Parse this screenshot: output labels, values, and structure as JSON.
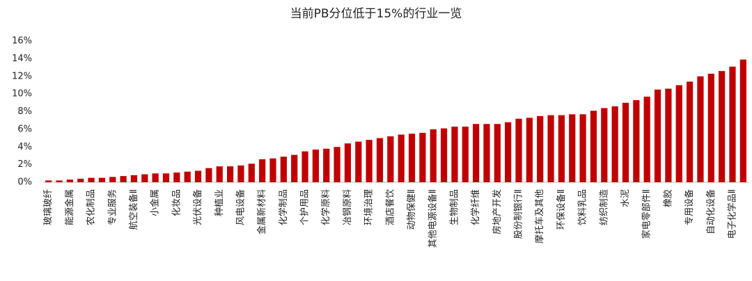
{
  "chart_data": {
    "type": "bar",
    "title": "当前PB分位低于15%的行业一览",
    "categories": [
      "玻璃玻纤",
      null,
      "能源金属",
      null,
      "农化制品",
      null,
      "专业服务",
      null,
      "航空装备Ⅱ",
      null,
      "小金属",
      null,
      "化妆品",
      null,
      "光伏设备",
      null,
      "种植业",
      null,
      "风电设备",
      null,
      "金属新材料",
      null,
      "化学制品",
      null,
      "个护用品",
      null,
      "化学原料",
      null,
      "冶钢原料",
      null,
      "环境治理",
      null,
      "酒店餐饮",
      null,
      "动物保健Ⅱ",
      null,
      "其他电源设备Ⅱ",
      null,
      "生物制品",
      null,
      "化学纤维",
      null,
      "房地产开发",
      null,
      "股份制银行Ⅱ",
      null,
      "摩托车及其他",
      null,
      "环保设备Ⅱ",
      null,
      "饮料乳品",
      null,
      "纺织制造",
      null,
      "水泥",
      null,
      "家电零部件Ⅱ",
      null,
      "橡胶",
      null,
      "专用设备",
      null,
      "自动化设备",
      null,
      "电子化学品Ⅱ",
      null
    ],
    "values": [
      0.2,
      0.2,
      0.3,
      0.4,
      0.5,
      0.5,
      0.6,
      0.7,
      0.8,
      0.9,
      1.0,
      1.0,
      1.1,
      1.2,
      1.3,
      1.6,
      1.8,
      1.8,
      1.9,
      2.1,
      2.6,
      2.7,
      2.9,
      3.1,
      3.5,
      3.7,
      3.8,
      4.0,
      4.4,
      4.6,
      4.8,
      5.0,
      5.2,
      5.4,
      5.5,
      5.6,
      6.0,
      6.1,
      6.3,
      6.3,
      6.6,
      6.6,
      6.6,
      6.8,
      7.2,
      7.3,
      7.5,
      7.6,
      7.6,
      7.7,
      7.7,
      8.1,
      8.4,
      8.6,
      9.0,
      9.3,
      9.7,
      10.5,
      10.6,
      11.0,
      11.4,
      12.0,
      12.3,
      12.6,
      13.1,
      13.9
    ],
    "color": "#c00000",
    "ylim": [
      0,
      16
    ],
    "yticks": [
      {
        "value": 0,
        "label": "0%"
      },
      {
        "value": 2,
        "label": "2%"
      },
      {
        "value": 4,
        "label": "4%"
      },
      {
        "value": 6,
        "label": "6%"
      },
      {
        "value": 8,
        "label": "8%"
      },
      {
        "value": 10,
        "label": "10%"
      },
      {
        "value": 12,
        "label": "12%"
      },
      {
        "value": 14,
        "label": "14%"
      },
      {
        "value": 16,
        "label": "16%"
      }
    ],
    "grid": false
  }
}
